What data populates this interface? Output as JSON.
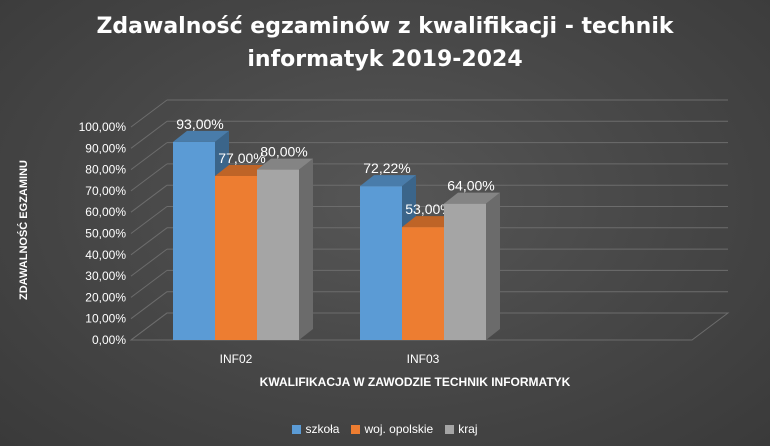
{
  "chart_data": {
    "type": "bar",
    "title_lines": [
      "Zdawalność egzaminów z kwalifikacji - technik",
      "informatyk 2019-2024"
    ],
    "xlabel": "KWALIFIKACJA W ZAWODZIE TECHNIK INFORMATYK",
    "ylabel": "ZDAWALNOŚĆ EGZAMINU",
    "categories": [
      "INF02",
      "INF03"
    ],
    "ylim": [
      0,
      100
    ],
    "yticks": [
      "0,00%",
      "10,00%",
      "20,00%",
      "30,00%",
      "40,00%",
      "50,00%",
      "60,00%",
      "70,00%",
      "80,00%",
      "90,00%",
      "100,00%"
    ],
    "grid": true,
    "legend_position": "bottom",
    "series": [
      {
        "name": "szkoła",
        "values": [
          93.0,
          72.22
        ],
        "labels": [
          "93,00%",
          "72,22%"
        ],
        "color": "#5b9bd5"
      },
      {
        "name": "woj. opolskie",
        "values": [
          77.0,
          53.0
        ],
        "labels": [
          "77,00%",
          "53,00%"
        ],
        "color": "#ed7d31"
      },
      {
        "name": "kraj",
        "values": [
          80.0,
          64.0
        ],
        "labels": [
          "80,00%",
          "64,00%"
        ],
        "color": "#a5a5a5"
      }
    ]
  }
}
